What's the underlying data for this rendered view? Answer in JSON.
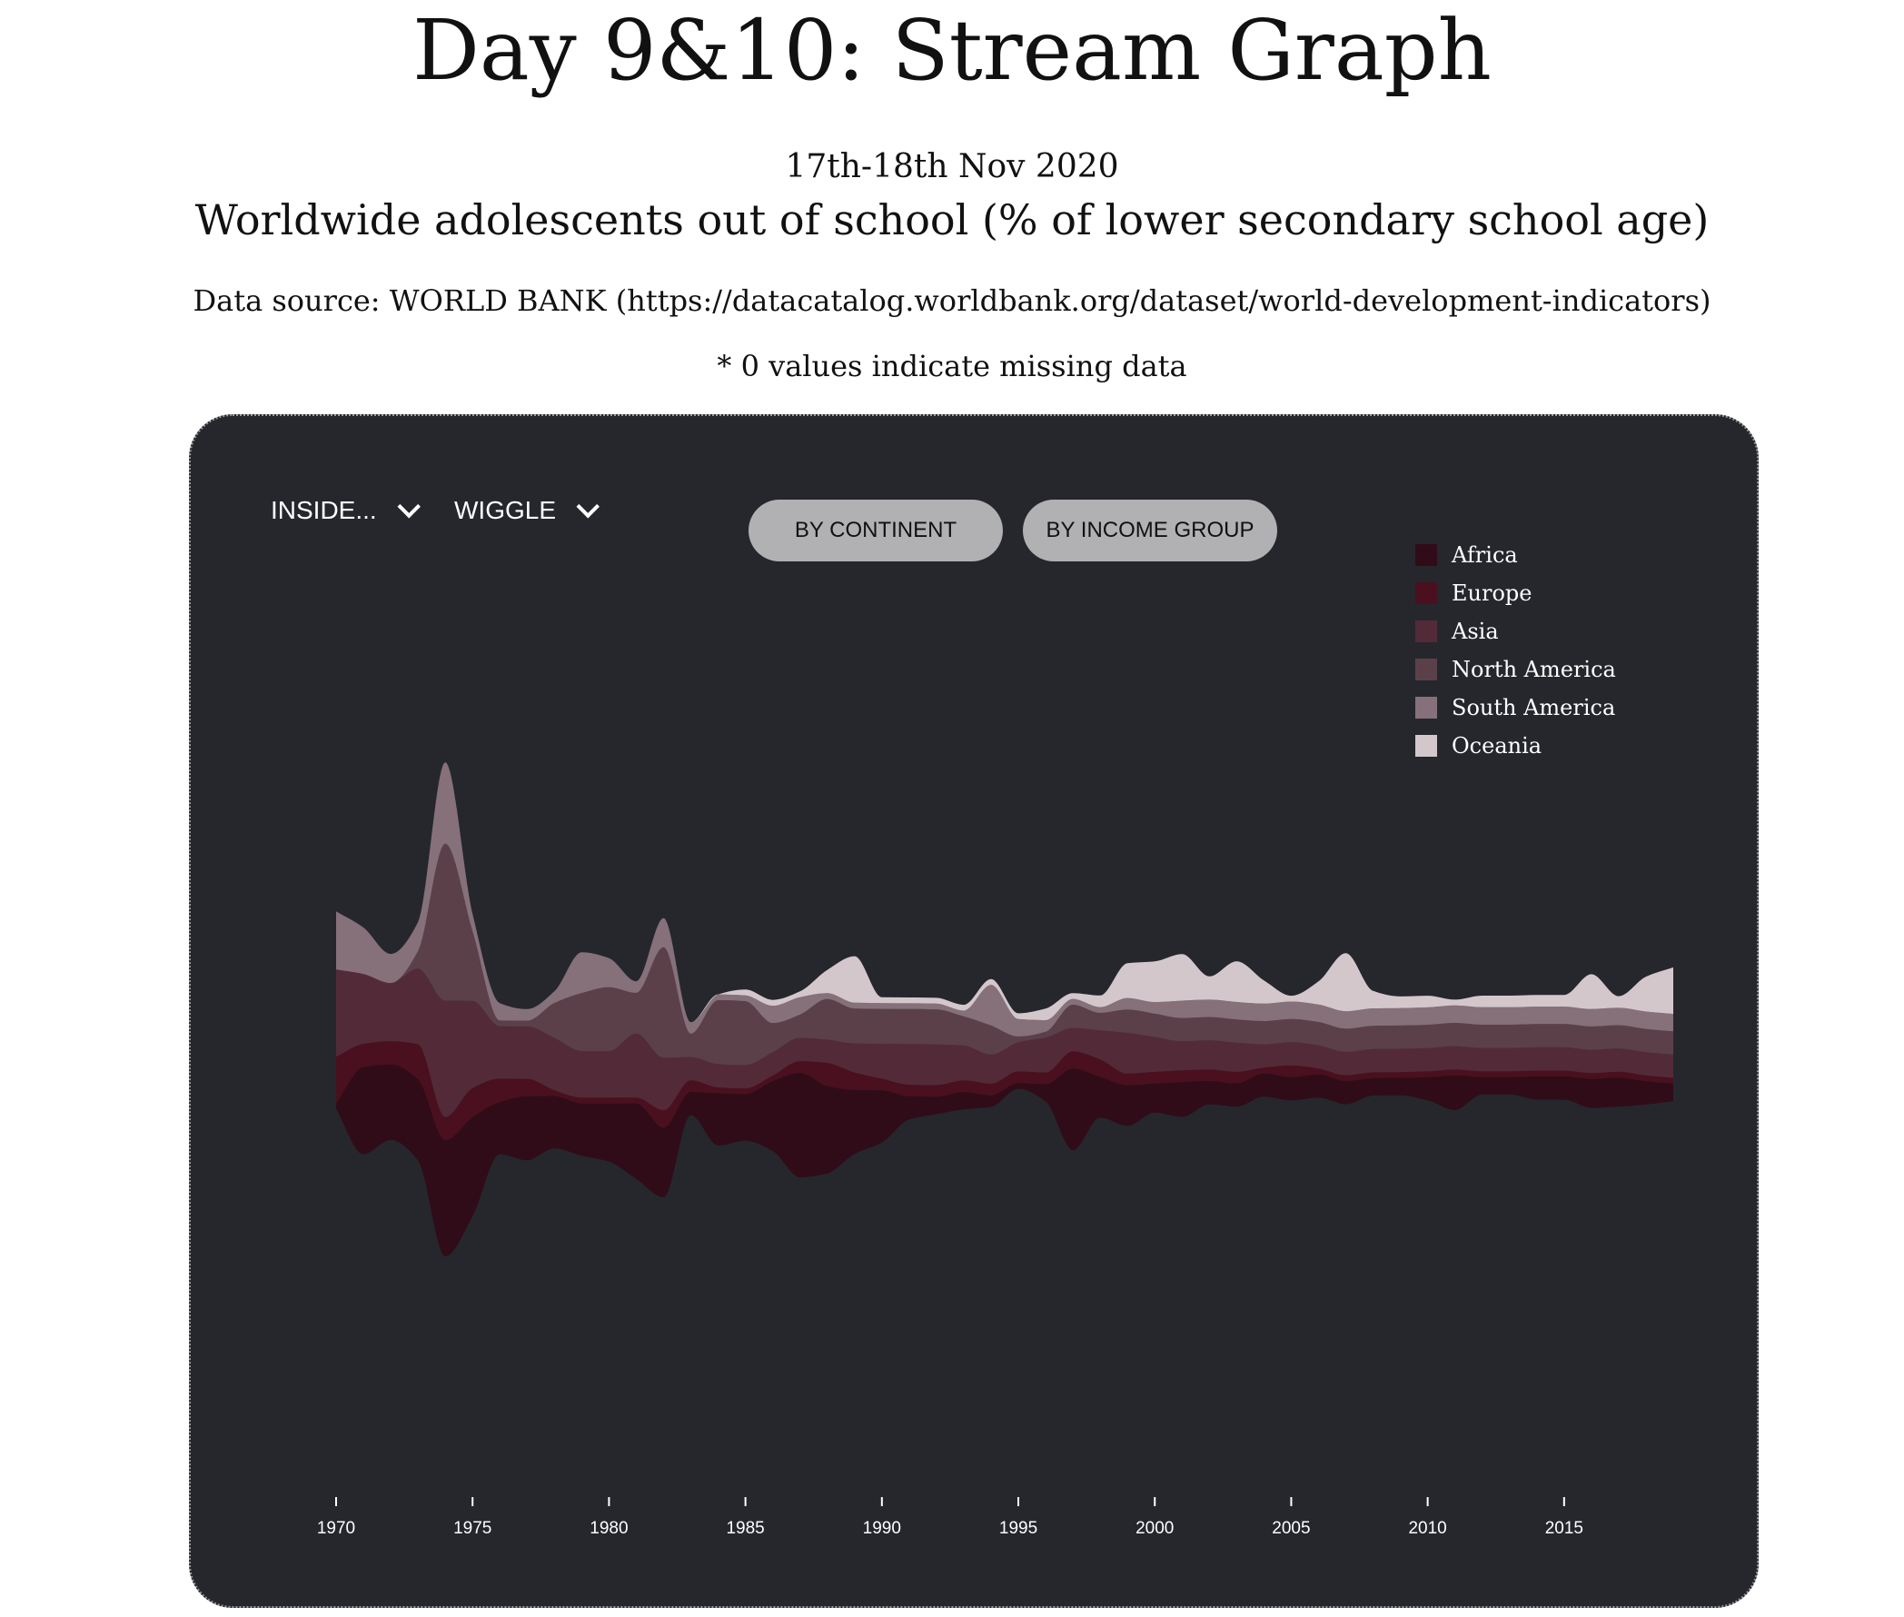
{
  "header": {
    "title": "Day 9&10: Stream Graph",
    "date": "17th-18th Nov 2020",
    "subtitle": "Worldwide adolescents out of school (% of lower secondary school age)",
    "source": "Data source: WORLD BANK (https://datacatalog.worldbank.org/dataset/world-development-indicators)",
    "note": "* 0 values indicate missing data"
  },
  "controls": {
    "offset_label": "INSIDE...",
    "curve_label": "WIGGLE",
    "by_continent_label": "BY CONTINENT",
    "by_income_label": "BY INCOME GROUP"
  },
  "chart_data": {
    "type": "area",
    "subtype": "streamgraph",
    "offset": "wiggle",
    "legend_position": "top-right",
    "grid": false,
    "xlim": [
      1970,
      2019
    ],
    "x": [
      1970,
      1971,
      1972,
      1973,
      1974,
      1975,
      1976,
      1977,
      1978,
      1979,
      1980,
      1981,
      1982,
      1983,
      1984,
      1985,
      1986,
      1987,
      1988,
      1989,
      1990,
      1991,
      1992,
      1993,
      1994,
      1995,
      1996,
      1997,
      1998,
      1999,
      2000,
      2001,
      2002,
      2003,
      2004,
      2005,
      2006,
      2007,
      2008,
      2009,
      2010,
      2011,
      2012,
      2013,
      2014,
      2015,
      2016,
      2017,
      2018,
      2019
    ],
    "x_ticks": [
      1970,
      1975,
      1980,
      1985,
      1990,
      1995,
      2000,
      2005,
      2010,
      2015
    ],
    "series": [
      {
        "name": "Africa",
        "color": "#300c18",
        "values": [
          2,
          30,
          26,
          28,
          40,
          34,
          18,
          22,
          18,
          18,
          20,
          26,
          24,
          8,
          18,
          16,
          24,
          36,
          30,
          22,
          18,
          8,
          6,
          6,
          4,
          2,
          6,
          28,
          14,
          14,
          10,
          12,
          8,
          8,
          8,
          8,
          8,
          8,
          6,
          6,
          8,
          12,
          6,
          6,
          8,
          8,
          10,
          10,
          8,
          6
        ]
      },
      {
        "name": "Europe",
        "color": "#4a101f",
        "values": [
          16,
          8,
          8,
          12,
          8,
          10,
          8,
          6,
          2,
          2,
          2,
          2,
          6,
          4,
          2,
          2,
          2,
          4,
          8,
          6,
          4,
          4,
          4,
          4,
          4,
          4,
          4,
          6,
          6,
          4,
          4,
          4,
          4,
          4,
          2,
          4,
          2,
          2,
          2,
          2,
          2,
          2,
          2,
          2,
          2,
          2,
          2,
          2,
          2,
          2
        ]
      },
      {
        "name": "Asia",
        "color": "#532b38",
        "values": [
          30,
          24,
          20,
          26,
          40,
          30,
          18,
          18,
          18,
          16,
          16,
          22,
          18,
          8,
          8,
          8,
          8,
          8,
          8,
          10,
          12,
          14,
          14,
          12,
          10,
          10,
          12,
          8,
          10,
          14,
          12,
          10,
          10,
          10,
          8,
          8,
          8,
          8,
          8,
          8,
          8,
          8,
          8,
          8,
          8,
          8,
          8,
          8,
          8,
          8
        ]
      },
      {
        "name": "North America",
        "color": "#5b404a",
        "values": [
          0,
          0,
          0,
          6,
          54,
          24,
          2,
          2,
          12,
          20,
          22,
          14,
          38,
          8,
          22,
          22,
          10,
          8,
          14,
          12,
          12,
          12,
          12,
          10,
          10,
          2,
          2,
          8,
          6,
          8,
          8,
          8,
          8,
          8,
          8,
          8,
          8,
          8,
          8,
          8,
          8,
          8,
          8,
          8,
          8,
          8,
          8,
          8,
          8,
          8
        ]
      },
      {
        "name": "South America",
        "color": "#86707a",
        "values": [
          20,
          16,
          10,
          10,
          28,
          6,
          6,
          4,
          4,
          14,
          10,
          4,
          10,
          4,
          2,
          2,
          6,
          6,
          2,
          2,
          2,
          2,
          2,
          2,
          14,
          6,
          4,
          2,
          2,
          4,
          4,
          6,
          6,
          6,
          6,
          6,
          6,
          6,
          6,
          6,
          6,
          6,
          6,
          6,
          6,
          6,
          6,
          6,
          6,
          6
        ]
      },
      {
        "name": "Oceania",
        "color": "#d4c7cc",
        "values": [
          0,
          0,
          0,
          0,
          0,
          0,
          0,
          0,
          0,
          0,
          0,
          0,
          0,
          0,
          0,
          2,
          2,
          2,
          8,
          16,
          2,
          2,
          2,
          2,
          2,
          2,
          4,
          2,
          4,
          12,
          14,
          16,
          8,
          14,
          8,
          2,
          8,
          20,
          6,
          4,
          4,
          2,
          4,
          4,
          4,
          4,
          12,
          4,
          12,
          16
        ]
      }
    ]
  }
}
